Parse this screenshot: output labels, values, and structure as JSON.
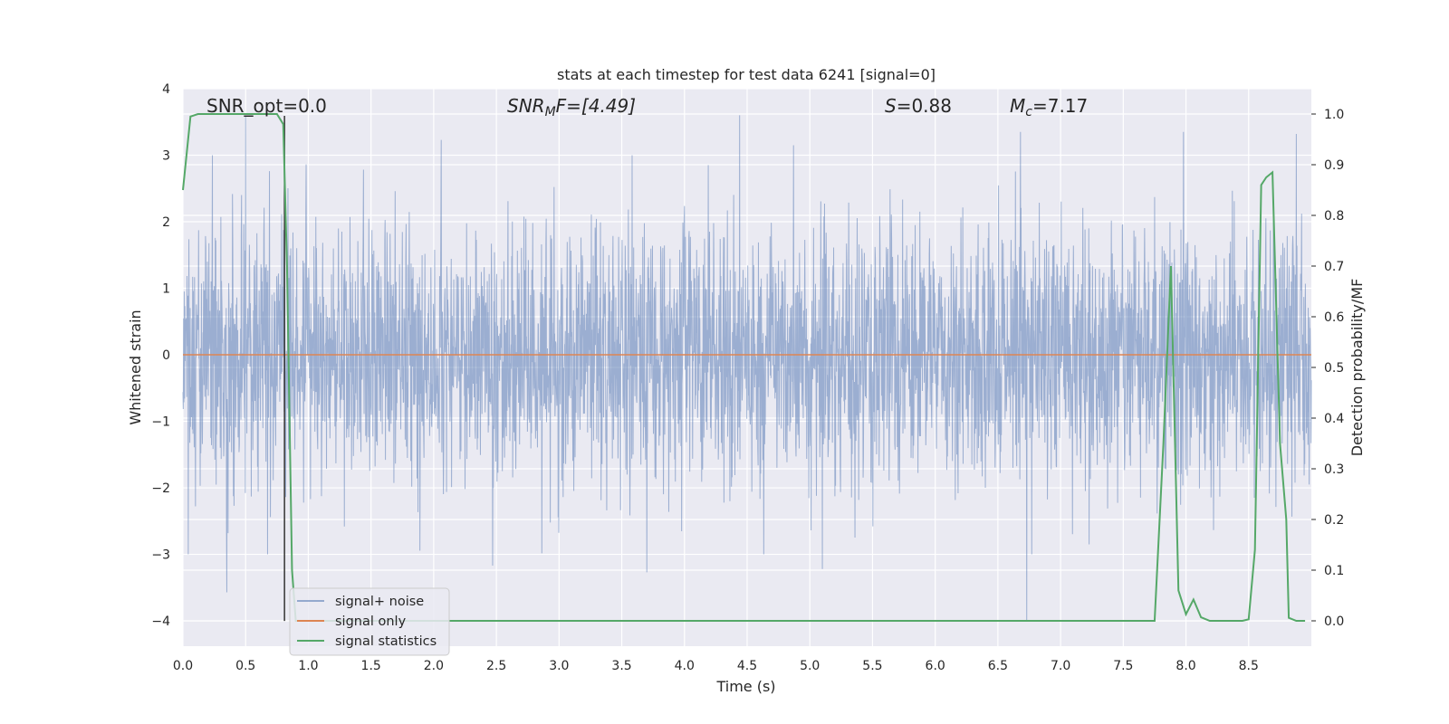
{
  "chart_data": {
    "type": "line",
    "title": "stats at each timestep for test data 6241 [signal=0]",
    "xlabel": "Time (s)",
    "ylabel": "Whitened strain",
    "ylabel_right": "Detection probability/MF",
    "xlim": [
      0.0,
      9.0
    ],
    "ylim": [
      -4.38,
      4.0
    ],
    "ylim_right": [
      -0.05,
      1.05
    ],
    "x_ticks": [
      "0.0",
      "0.5",
      "1.0",
      "1.5",
      "2.0",
      "2.5",
      "3.0",
      "3.5",
      "4.0",
      "4.5",
      "5.0",
      "5.5",
      "6.0",
      "6.5",
      "7.0",
      "7.5",
      "8.0",
      "8.5"
    ],
    "y_ticks": [
      "4",
      "3",
      "2",
      "1",
      "0",
      "−1",
      "−2",
      "−3",
      "−4"
    ],
    "y_ticks_right": [
      "1.0",
      "0.9",
      "0.8",
      "0.7",
      "0.6",
      "0.5",
      "0.4",
      "0.3",
      "0.2",
      "0.1",
      "0.0"
    ],
    "grid": true,
    "legend_position": "lower-left",
    "annotations": {
      "snr_opt": "SNR_opt=0.0",
      "snr_mf_label": "SNR",
      "snr_mf_sub": "M",
      "snr_mf_rest": "F=[4.49]",
      "s_label": "S",
      "s_value": "=0.88",
      "mc_label": "M",
      "mc_sub": "c",
      "mc_value": "=7.17"
    },
    "vertical_marker_x": 0.81,
    "series": [
      {
        "name": "signal+ noise",
        "color": "#4c72b0",
        "kind": "noise",
        "envelope": {
          "typical_abs": 1.7,
          "max_positive": 3.6,
          "min_negative": -4.0
        },
        "notable_peaks": [
          {
            "x": 0.35,
            "y": -3.57
          },
          {
            "x": 0.5,
            "y": 3.6
          },
          {
            "x": 2.06,
            "y": 3.23
          },
          {
            "x": 2.47,
            "y": -3.17
          },
          {
            "x": 3.7,
            "y": -3.27
          },
          {
            "x": 4.44,
            "y": 3.6
          },
          {
            "x": 4.87,
            "y": 3.15
          },
          {
            "x": 5.1,
            "y": -3.22
          },
          {
            "x": 6.68,
            "y": 3.35
          },
          {
            "x": 6.73,
            "y": -4.0
          },
          {
            "x": 7.98,
            "y": 3.35
          },
          {
            "x": 8.88,
            "y": 3.32
          }
        ]
      },
      {
        "name": "signal only",
        "color": "#dd8452",
        "x": [
          0.0,
          9.0
        ],
        "y": [
          0.0,
          0.0
        ]
      },
      {
        "name": "signal statistics",
        "color": "#55a868",
        "axis": "right",
        "x": [
          0.0,
          0.06,
          0.12,
          0.25,
          0.5,
          0.75,
          0.8,
          0.83,
          0.85,
          0.87,
          0.9,
          1.0,
          2.0,
          3.0,
          4.0,
          5.0,
          6.0,
          7.0,
          7.5,
          7.75,
          7.82,
          7.88,
          7.94,
          8.0,
          8.06,
          8.12,
          8.19,
          8.3,
          8.45,
          8.5,
          8.55,
          8.6,
          8.64,
          8.69,
          8.75,
          8.8,
          8.82,
          8.88,
          8.95
        ],
        "y": [
          0.85,
          0.995,
          1.0,
          1.0,
          1.0,
          1.0,
          0.98,
          0.7,
          0.4,
          0.1,
          0.0,
          0.0,
          0.0,
          0.0,
          0.0,
          0.0,
          0.0,
          0.0,
          0.0,
          0.0,
          0.35,
          0.7,
          0.06,
          0.013,
          0.042,
          0.007,
          0.0,
          0.0,
          0.0,
          0.003,
          0.14,
          0.86,
          0.875,
          0.885,
          0.35,
          0.2,
          0.006,
          0.0,
          0.0
        ]
      }
    ]
  }
}
